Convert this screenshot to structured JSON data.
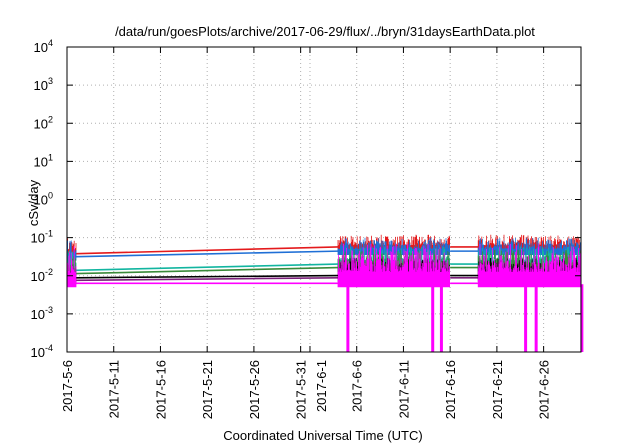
{
  "chart_data": {
    "type": "line",
    "title": "/data/run/goesPlots/archive/2017-06-29/flux/../bryn/31daysEarthData.plot",
    "xlabel": "Coordinated Universal Time (UTC)",
    "ylabel": "cSv/day",
    "yscale": "log",
    "ylim": [
      0.0001,
      10000
    ],
    "y_ticks": [
      {
        "value": 0.0001,
        "base": "10",
        "exp": "-4"
      },
      {
        "value": 0.001,
        "base": "10",
        "exp": "-3"
      },
      {
        "value": 0.01,
        "base": "10",
        "exp": "-2"
      },
      {
        "value": 0.1,
        "base": "10",
        "exp": "-1"
      },
      {
        "value": 1,
        "base": "10",
        "exp": "0"
      },
      {
        "value": 10,
        "base": "10",
        "exp": "1"
      },
      {
        "value": 100,
        "base": "10",
        "exp": "2"
      },
      {
        "value": 1000,
        "base": "10",
        "exp": "3"
      },
      {
        "value": 10000,
        "base": "10",
        "exp": "4"
      }
    ],
    "xlim": [
      "2017-05-06",
      "2017-06-30"
    ],
    "x_ticks": [
      "2017-5-6",
      "2017-5-11",
      "2017-5-16",
      "2017-5-21",
      "2017-5-26",
      "2017-5-31",
      "2017-6-1",
      "2017-6-6",
      "2017-6-11",
      "2017-6-16",
      "2017-6-21",
      "2017-6-26"
    ],
    "grid": true,
    "legend": "none",
    "gaps": [
      [
        "2017-05-07",
        "2017-06-04"
      ],
      [
        "2017-06-16",
        "2017-06-19"
      ]
    ],
    "series": [
      {
        "color": "#e41a1c",
        "values": [
          {
            "start": "2017-05-06",
            "end": "2017-05-07",
            "low": 0.03,
            "high": 0.11
          },
          {
            "start": "2017-06-04",
            "end": "2017-06-16",
            "low": 0.045,
            "high": 0.12
          },
          {
            "start": "2017-06-19",
            "end": "2017-06-30",
            "low": 0.045,
            "high": 0.12
          }
        ]
      },
      {
        "color": "#1f6fd6",
        "values": [
          {
            "start": "2017-05-06",
            "end": "2017-05-07",
            "low": 0.025,
            "high": 0.09
          },
          {
            "start": "2017-06-04",
            "end": "2017-06-16",
            "low": 0.035,
            "high": 0.1
          },
          {
            "start": "2017-06-19",
            "end": "2017-06-30",
            "low": 0.035,
            "high": 0.1
          }
        ]
      },
      {
        "color": "#12b5a0",
        "values": [
          {
            "start": "2017-05-06",
            "end": "2017-05-07",
            "low": 0.011,
            "high": 0.05
          },
          {
            "start": "2017-06-04",
            "end": "2017-06-16",
            "low": 0.016,
            "high": 0.06
          },
          {
            "start": "2017-06-19",
            "end": "2017-06-30",
            "low": 0.016,
            "high": 0.06
          }
        ]
      },
      {
        "color": "#3a8a3a",
        "values": [
          {
            "start": "2017-05-06",
            "end": "2017-05-07",
            "low": 0.009,
            "high": 0.04
          },
          {
            "start": "2017-06-04",
            "end": "2017-06-16",
            "low": 0.013,
            "high": 0.05
          },
          {
            "start": "2017-06-19",
            "end": "2017-06-30",
            "low": 0.013,
            "high": 0.05
          }
        ]
      },
      {
        "color": "#000000",
        "values": [
          {
            "start": "2017-05-06",
            "end": "2017-05-07",
            "low": 0.007,
            "high": 0.02
          },
          {
            "start": "2017-06-04",
            "end": "2017-06-16",
            "low": 0.008,
            "high": 0.03
          },
          {
            "start": "2017-06-19",
            "end": "2017-06-30",
            "low": 0.008,
            "high": 0.03
          }
        ]
      },
      {
        "color": "#7a1f7a",
        "values": [
          {
            "start": "2017-05-06",
            "end": "2017-05-07",
            "low": 0.006,
            "high": 0.018
          },
          {
            "start": "2017-06-04",
            "end": "2017-06-16",
            "low": 0.007,
            "high": 0.025
          },
          {
            "start": "2017-06-19",
            "end": "2017-06-30",
            "low": 0.007,
            "high": 0.025
          }
        ]
      },
      {
        "color": "#ff00ff",
        "values": [
          {
            "start": "2017-05-06",
            "end": "2017-05-07",
            "low": 0.005,
            "high": 0.06
          },
          {
            "start": "2017-06-04",
            "end": "2017-06-16",
            "low": 0.005,
            "high": 0.07
          },
          {
            "start": "2017-06-19",
            "end": "2017-06-30",
            "low": 0.005,
            "high": 0.07
          }
        ]
      }
    ],
    "dropouts": [
      "2017-06-05",
      "2017-06-14",
      "2017-06-15",
      "2017-06-24",
      "2017-06-25",
      "2017-06-30"
    ]
  }
}
